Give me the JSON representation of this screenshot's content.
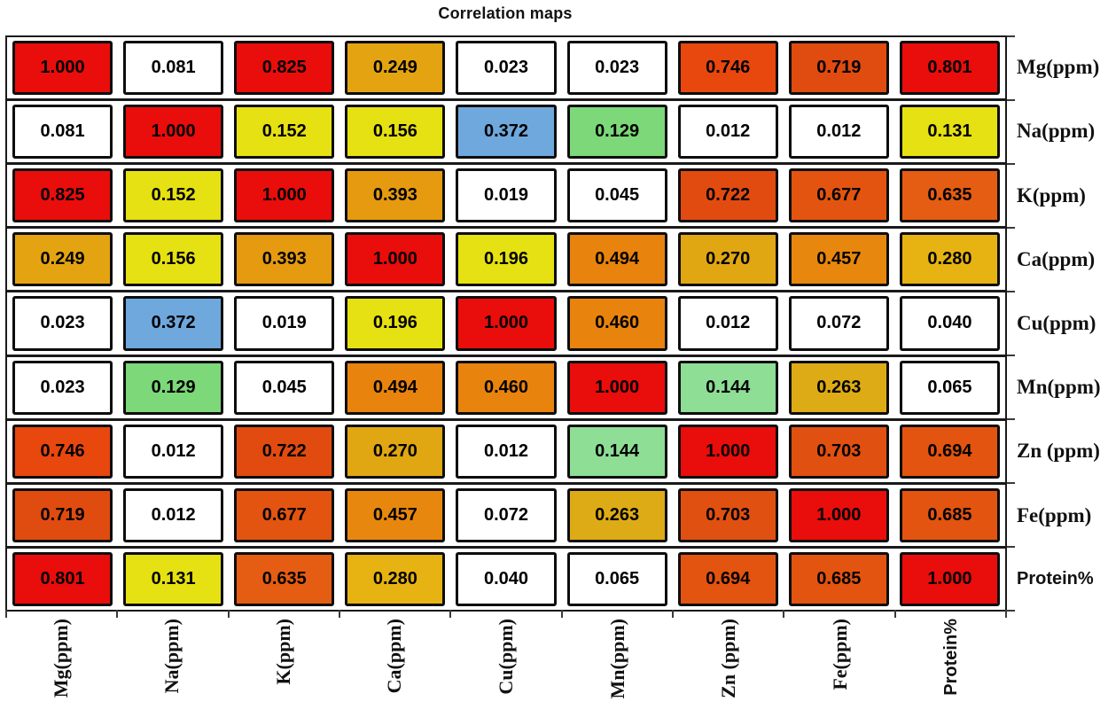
{
  "title": "Correlation maps",
  "chart_data": {
    "type": "heatmap",
    "title": "Correlation maps",
    "row_labels": [
      "Mg(ppm)",
      "Na(ppm)",
      "K(ppm)",
      "Ca(ppm)",
      "Cu(ppm)",
      "Mn(ppm)",
      "Zn (ppm)",
      "Fe(ppm)",
      "Protein%"
    ],
    "col_labels": [
      "Mg(ppm)",
      "Na(ppm)",
      "K(ppm)",
      "Ca(ppm)",
      "Cu(ppm)",
      "Mn(ppm)",
      "Zn (ppm)",
      "Fe(ppm)",
      "Protein%"
    ],
    "matrix": [
      [
        "1.000",
        "0.081",
        "0.825",
        "0.249",
        "0.023",
        "0.023",
        "0.746",
        "0.719",
        "0.801"
      ],
      [
        "0.081",
        "1.000",
        "0.152",
        "0.156",
        "0.372",
        "0.129",
        "0.012",
        "0.012",
        "0.131"
      ],
      [
        "0.825",
        "0.152",
        "1.000",
        "0.393",
        "0.019",
        "0.045",
        "0.722",
        "0.677",
        "0.635"
      ],
      [
        "0.249",
        "0.156",
        "0.393",
        "1.000",
        "0.196",
        "0.494",
        "0.270",
        "0.457",
        "0.280"
      ],
      [
        "0.023",
        "0.372",
        "0.019",
        "0.196",
        "1.000",
        "0.460",
        "0.012",
        "0.072",
        "0.040"
      ],
      [
        "0.023",
        "0.129",
        "0.045",
        "0.494",
        "0.460",
        "1.000",
        "0.144",
        "0.263",
        "0.065"
      ],
      [
        "0.746",
        "0.012",
        "0.722",
        "0.270",
        "0.012",
        "0.144",
        "1.000",
        "0.703",
        "0.694"
      ],
      [
        "0.719",
        "0.012",
        "0.677",
        "0.457",
        "0.072",
        "0.263",
        "0.703",
        "1.000",
        "0.685"
      ],
      [
        "0.801",
        "0.131",
        "0.635",
        "0.280",
        "0.040",
        "0.065",
        "0.694",
        "0.685",
        "1.000"
      ]
    ],
    "cell_colors": [
      [
        "#e90d0b",
        "#ffffff",
        "#e90d0b",
        "#e4a411",
        "#ffffff",
        "#ffffff",
        "#e8470e",
        "#e04b10",
        "#e90d0b"
      ],
      [
        "#ffffff",
        "#e90d0b",
        "#e6e112",
        "#e6e112",
        "#6fa8dc",
        "#7cd878",
        "#ffffff",
        "#ffffff",
        "#e6e112"
      ],
      [
        "#e90d0b",
        "#e6e112",
        "#e90d0b",
        "#e59a10",
        "#ffffff",
        "#ffffff",
        "#e24b10",
        "#e35410",
        "#e55d12"
      ],
      [
        "#e4a411",
        "#e6e112",
        "#e59a10",
        "#e90d0b",
        "#e6e112",
        "#e8830e",
        "#e0a713",
        "#e8870e",
        "#e7b312"
      ],
      [
        "#ffffff",
        "#6fa8dc",
        "#ffffff",
        "#e6e112",
        "#e90d0b",
        "#e8830e",
        "#ffffff",
        "#ffffff",
        "#ffffff"
      ],
      [
        "#ffffff",
        "#7cd878",
        "#ffffff",
        "#e8830e",
        "#e8830e",
        "#e90d0b",
        "#8ede96",
        "#ddab15",
        "#ffffff"
      ],
      [
        "#e8470e",
        "#ffffff",
        "#e24b10",
        "#e0a713",
        "#ffffff",
        "#8ede96",
        "#e90d0b",
        "#e05010",
        "#e35410"
      ],
      [
        "#e04b10",
        "#ffffff",
        "#e35410",
        "#e8870e",
        "#ffffff",
        "#ddab15",
        "#e05010",
        "#e90d0b",
        "#e35410"
      ],
      [
        "#e90d0b",
        "#e6e112",
        "#e55d12",
        "#e7b312",
        "#ffffff",
        "#ffffff",
        "#e35410",
        "#e35410",
        "#e90d0b"
      ]
    ],
    "value_range": [
      0,
      1
    ],
    "legend": "none",
    "colors": {
      "red": "#e90d0b",
      "orange_red": "#e24b10",
      "orange": "#e8830e",
      "amber": "#e3a713",
      "yellow": "#e6e112",
      "green": "#7cd878",
      "light_green": "#8ede96",
      "blue": "#6fa8dc",
      "white": "#ffffff",
      "grid_line": "#1a1a1a",
      "cell_border": "#0d0d0d",
      "text": "#000000"
    }
  }
}
